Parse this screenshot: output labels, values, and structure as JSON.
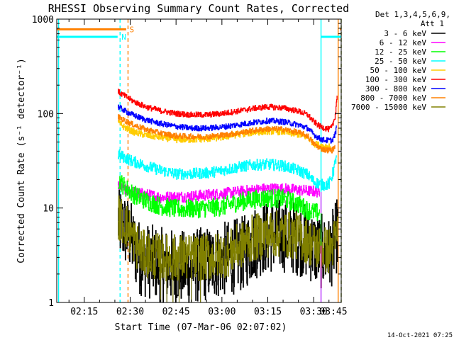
{
  "chart_data": {
    "type": "line",
    "title": "RHESSI Observing Summary Count Rates, Corrected",
    "xlabel": "Start Time (07-Mar-06 02:07:02)",
    "ylabel": "Corrected Count Rate (s⁻¹ detector⁻¹)",
    "yscale": "log",
    "ylim": [
      1,
      1000
    ],
    "xlim": [
      6,
      99
    ],
    "x_unit": "minutes after 02:00 UT",
    "x_ticks": [
      {
        "x": 15,
        "label": "02:15"
      },
      {
        "x": 30,
        "label": "02:30"
      },
      {
        "x": 45,
        "label": "02:45"
      },
      {
        "x": 60,
        "label": "03:00"
      },
      {
        "x": 75,
        "label": "03:15"
      },
      {
        "x": 90,
        "label": "03:30"
      },
      {
        "x": 105,
        "label": "03:45"
      }
    ],
    "y_ticks": [
      {
        "y": 1,
        "label": "1"
      },
      {
        "y": 10,
        "label": "10"
      },
      {
        "y": 100,
        "label": "100"
      },
      {
        "y": 1000,
        "label": "1000"
      }
    ],
    "legend": {
      "header": [
        "Det 1,3,4,5,6,9,",
        "Att 1"
      ],
      "position": "right"
    },
    "series": [
      {
        "name": "3 - 6 keV",
        "color": "#000000",
        "noise": 0.4,
        "points": [
          [
            26,
            7.5
          ],
          [
            28,
            6
          ],
          [
            30,
            5
          ],
          [
            31,
            4
          ],
          [
            33,
            3
          ],
          [
            35,
            2.8
          ],
          [
            40,
            2.5
          ],
          [
            48,
            2.3
          ],
          [
            53,
            2.5
          ],
          [
            58,
            2.7
          ],
          [
            63,
            3
          ],
          [
            67,
            3.3
          ],
          [
            70,
            4.2
          ],
          [
            74,
            5
          ],
          [
            80,
            5.2
          ],
          [
            85,
            4.8
          ],
          [
            88,
            4.3
          ],
          [
            91,
            3.6
          ],
          [
            95,
            3.2
          ],
          [
            97,
            4.5
          ],
          [
            98,
            6
          ]
        ]
      },
      {
        "name": "6 - 12 keV",
        "color": "#ff00ff",
        "noise": 0.06,
        "points": [
          [
            26,
            17
          ],
          [
            28,
            15.5
          ],
          [
            32,
            14.5
          ],
          [
            40,
            13
          ],
          [
            50,
            13.3
          ],
          [
            58,
            14
          ],
          [
            65,
            14.8
          ],
          [
            70,
            15.5
          ],
          [
            75,
            16
          ],
          [
            80,
            16
          ],
          [
            85,
            15.5
          ],
          [
            90,
            15
          ],
          [
            92,
            14.8
          ]
        ]
      },
      {
        "name": "12 - 25 keV",
        "color": "#00ff00",
        "noise": 0.1,
        "points": [
          [
            26,
            20
          ],
          [
            28,
            17
          ],
          [
            31,
            14
          ],
          [
            35,
            12
          ],
          [
            40,
            10.5
          ],
          [
            45,
            9.8
          ],
          [
            50,
            9.8
          ],
          [
            55,
            10
          ],
          [
            60,
            10.3
          ],
          [
            65,
            11.5
          ],
          [
            70,
            12.3
          ],
          [
            75,
            12.8
          ],
          [
            80,
            12.5
          ],
          [
            85,
            11
          ],
          [
            88,
            9.5
          ],
          [
            90,
            9
          ],
          [
            92,
            8.8
          ]
        ]
      },
      {
        "name": "25 - 50 keV",
        "color": "#00ffff",
        "noise": 0.06,
        "points": [
          [
            26,
            37
          ],
          [
            30,
            32
          ],
          [
            35,
            28
          ],
          [
            40,
            25
          ],
          [
            45,
            23
          ],
          [
            50,
            23
          ],
          [
            55,
            23.5
          ],
          [
            60,
            25
          ],
          [
            65,
            27
          ],
          [
            70,
            28.5
          ],
          [
            75,
            29
          ],
          [
            80,
            28
          ],
          [
            85,
            25
          ],
          [
            88,
            22.5
          ],
          [
            90,
            19
          ],
          [
            93,
            17.5
          ],
          [
            95,
            18
          ],
          [
            96,
            22
          ],
          [
            97,
            30
          ],
          [
            97.5,
            40
          ]
        ]
      },
      {
        "name": "50 - 100 keV",
        "color": "#ffcc00",
        "noise": 0.035,
        "points": [
          [
            26,
            80
          ],
          [
            28,
            72
          ],
          [
            31,
            64
          ],
          [
            35,
            59
          ],
          [
            40,
            56
          ],
          [
            45,
            53
          ],
          [
            50,
            53
          ],
          [
            55,
            54
          ],
          [
            60,
            56
          ],
          [
            65,
            60
          ],
          [
            70,
            63
          ],
          [
            75,
            65
          ],
          [
            80,
            64
          ],
          [
            85,
            60
          ],
          [
            88,
            56
          ],
          [
            90,
            48
          ],
          [
            92,
            46
          ],
          [
            94,
            45
          ],
          [
            95.5,
            45
          ]
        ]
      },
      {
        "name": "100 - 300 keV",
        "color": "#ff0000",
        "noise": 0.03,
        "points": [
          [
            26,
            170
          ],
          [
            28,
            155
          ],
          [
            31,
            135
          ],
          [
            35,
            118
          ],
          [
            40,
            107
          ],
          [
            45,
            100
          ],
          [
            50,
            97
          ],
          [
            55,
            97
          ],
          [
            60,
            100
          ],
          [
            65,
            106
          ],
          [
            70,
            113
          ],
          [
            75,
            118
          ],
          [
            80,
            115
          ],
          [
            85,
            106
          ],
          [
            88,
            97
          ],
          [
            90,
            82
          ],
          [
            92,
            73
          ],
          [
            95,
            68
          ],
          [
            96,
            72
          ],
          [
            97,
            95
          ],
          [
            97.7,
            165
          ]
        ]
      },
      {
        "name": "300 - 800 keV",
        "color": "#0000ff",
        "noise": 0.03,
        "points": [
          [
            26,
            118
          ],
          [
            28,
            108
          ],
          [
            31,
            96
          ],
          [
            35,
            86
          ],
          [
            40,
            78
          ],
          [
            45,
            73
          ],
          [
            50,
            70
          ],
          [
            55,
            70
          ],
          [
            60,
            72
          ],
          [
            65,
            76
          ],
          [
            70,
            80
          ],
          [
            75,
            84
          ],
          [
            80,
            82
          ],
          [
            85,
            76
          ],
          [
            88,
            70
          ],
          [
            90,
            60
          ],
          [
            92,
            54
          ],
          [
            94,
            52
          ],
          [
            96,
            52
          ],
          [
            97,
            60
          ],
          [
            97.5,
            75
          ]
        ]
      },
      {
        "name": "800 - 7000 keV",
        "color": "#ff8000",
        "noise": 0.03,
        "points": [
          [
            26,
            92
          ],
          [
            28,
            85
          ],
          [
            31,
            76
          ],
          [
            35,
            68
          ],
          [
            40,
            62
          ],
          [
            45,
            58
          ],
          [
            50,
            57
          ],
          [
            55,
            57
          ],
          [
            60,
            59
          ],
          [
            65,
            62
          ],
          [
            70,
            66
          ],
          [
            75,
            69
          ],
          [
            80,
            68
          ],
          [
            85,
            63
          ],
          [
            88,
            58
          ],
          [
            90,
            48
          ],
          [
            92,
            43
          ],
          [
            94,
            41
          ],
          [
            96,
            41
          ],
          [
            97,
            45
          ]
        ]
      },
      {
        "name": "7000 - 15000 keV",
        "color": "#808000",
        "noise": 0.25,
        "points": [
          [
            26,
            8
          ],
          [
            28,
            7
          ],
          [
            30,
            5.5
          ],
          [
            32,
            4
          ],
          [
            34,
            3.3
          ],
          [
            40,
            3
          ],
          [
            48,
            3
          ],
          [
            56,
            3
          ],
          [
            62,
            3.3
          ],
          [
            66,
            4
          ],
          [
            70,
            4.8
          ],
          [
            75,
            5.3
          ],
          [
            80,
            5.3
          ],
          [
            85,
            5
          ],
          [
            88,
            4.5
          ],
          [
            90,
            4
          ],
          [
            95,
            3.5
          ],
          [
            97,
            4.5
          ],
          [
            98,
            6
          ]
        ]
      }
    ],
    "markers": [
      {
        "label": "S",
        "color": "#ff8000",
        "x_line": 29.3,
        "bar": [
          6,
          28.7
        ],
        "bar_y": 780
      },
      {
        "label": "N",
        "color": "#00ffff",
        "x_line": 26.7,
        "bar": [
          6,
          25.9
        ],
        "bar_y": 650
      }
    ],
    "vlines": [
      {
        "x": 6.6,
        "color": "#00ffff",
        "style": "solid"
      },
      {
        "x": 26.7,
        "color": "#00ffff",
        "style": "dashed"
      },
      {
        "x": 29.3,
        "color": "#ff8000",
        "style": "dashed"
      },
      {
        "x": 92.4,
        "color": "#00ffff",
        "style": "solid"
      },
      {
        "x": 98.0,
        "color": "#ff8000",
        "style": "solid"
      },
      {
        "x": 99.0,
        "color": "#00ffff",
        "style": "dashed"
      },
      {
        "x": 100.0,
        "color": "#ff8000",
        "style": "dashed"
      }
    ],
    "right_bars": [
      {
        "color": "#00ffff",
        "range": [
          92.4,
          99.0
        ],
        "y": 650
      },
      {
        "color": "#ff8000",
        "range": [
          98.6,
          99.5
        ],
        "y": 780
      }
    ]
  },
  "footer": {
    "timestamp": "14-Oct-2021 07:25"
  }
}
